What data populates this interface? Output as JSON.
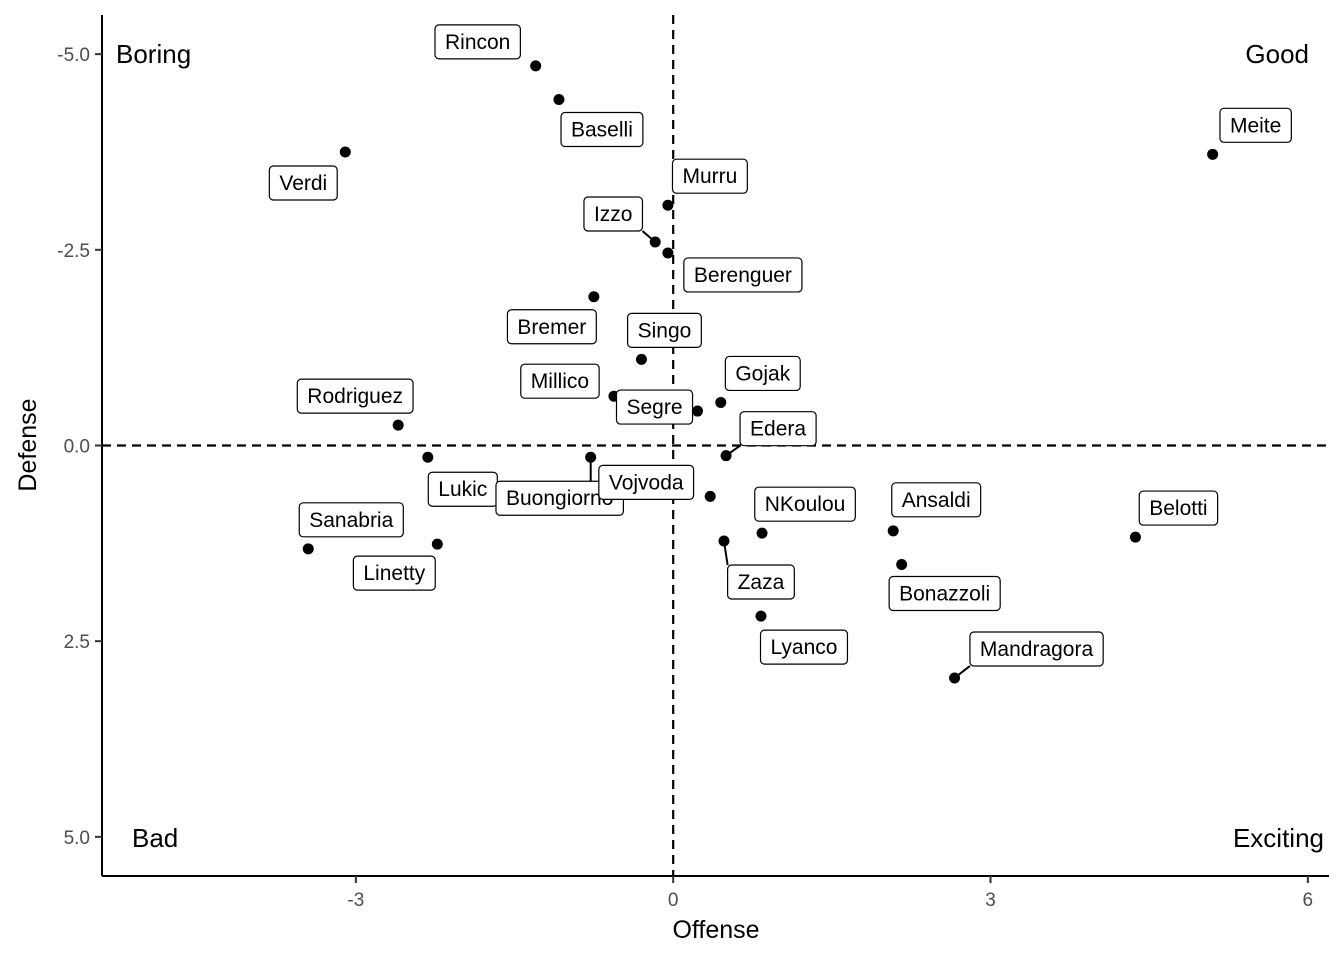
{
  "chart_data": {
    "type": "scatter",
    "title": "",
    "xlabel": "Offense",
    "ylabel": "Defense",
    "xlim": [
      -5.4,
      6.2
    ],
    "ylim": [
      -5.5,
      5.5
    ],
    "y_reversed": true,
    "x_ticks": [
      -3,
      0,
      3,
      6
    ],
    "x_tick_labels": [
      "-3",
      "0",
      "3",
      "6"
    ],
    "y_ticks": [
      -5,
      -2.5,
      0,
      2.5,
      5
    ],
    "y_tick_labels": [
      "-5.0",
      "-2.5",
      "0.0",
      "2.5",
      "5.0"
    ],
    "reference_lines": {
      "x": 0,
      "y": 0,
      "style": "dashed"
    },
    "grid": false,
    "quadrant_labels": {
      "top_left": "Boring",
      "top_right": "Good",
      "bottom_left": "Bad",
      "bottom_right": "Exciting"
    },
    "points": [
      {
        "name": "Rincon",
        "x": -1.3,
        "y": -4.85
      },
      {
        "name": "Baselli",
        "x": -1.08,
        "y": -4.42
      },
      {
        "name": "Verdi",
        "x": -3.1,
        "y": -3.75
      },
      {
        "name": "Meite",
        "x": 5.1,
        "y": -3.72
      },
      {
        "name": "Murru",
        "x": -0.05,
        "y": -3.07
      },
      {
        "name": "Izzo",
        "x": -0.17,
        "y": -2.6
      },
      {
        "name": "Berenguer",
        "x": -0.05,
        "y": -2.46
      },
      {
        "name": "Bremer",
        "x": -0.75,
        "y": -1.9
      },
      {
        "name": "Singo",
        "x": -0.3,
        "y": -1.1
      },
      {
        "name": "Millico",
        "x": -0.56,
        "y": -0.63
      },
      {
        "name": "Gojak",
        "x": 0.45,
        "y": -0.55
      },
      {
        "name": "Segre",
        "x": 0.23,
        "y": -0.44
      },
      {
        "name": "Rodriguez",
        "x": -2.6,
        "y": -0.26
      },
      {
        "name": "Edera",
        "x": 0.5,
        "y": 0.13
      },
      {
        "name": "Lukic",
        "x": -2.32,
        "y": 0.15
      },
      {
        "name": "Buongiorno",
        "x": -0.78,
        "y": 0.15
      },
      {
        "name": "Vojvoda",
        "x": 0.35,
        "y": 0.65
      },
      {
        "name": "NKoulou",
        "x": 0.84,
        "y": 1.12
      },
      {
        "name": "Ansaldi",
        "x": 2.08,
        "y": 1.09
      },
      {
        "name": "Belotti",
        "x": 4.37,
        "y": 1.17
      },
      {
        "name": "Zaza",
        "x": 0.48,
        "y": 1.22
      },
      {
        "name": "Linetty",
        "x": -2.23,
        "y": 1.26
      },
      {
        "name": "Sanabria",
        "x": -3.45,
        "y": 1.32
      },
      {
        "name": "Bonazzoli",
        "x": 2.16,
        "y": 1.52
      },
      {
        "name": "Lyanco",
        "x": 0.83,
        "y": 2.18
      },
      {
        "name": "Mandragora",
        "x": 2.66,
        "y": 2.97
      }
    ]
  }
}
